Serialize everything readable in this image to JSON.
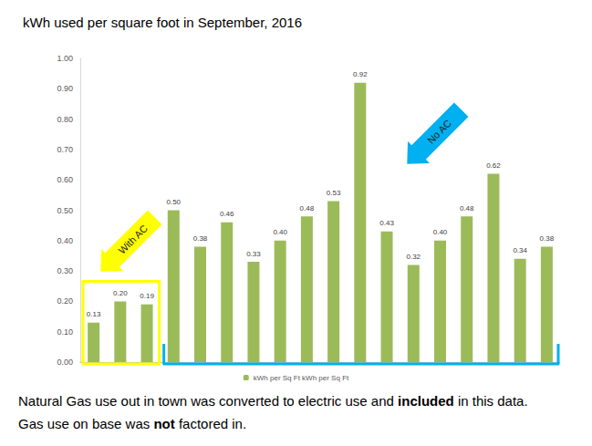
{
  "chart_data": {
    "type": "bar",
    "title": "kWh used per square foot in September, 2016",
    "categories": [
      null,
      null,
      null,
      null,
      null,
      null,
      null,
      null,
      null,
      null,
      null,
      null,
      null,
      null,
      null,
      null,
      null,
      null
    ],
    "series": [
      {
        "name": "kWh per Sq Ft kWh per Sq Ft",
        "color": "#9bbb59",
        "values": [
          0.13,
          0.2,
          0.19,
          0.5,
          0.38,
          0.46,
          0.33,
          0.4,
          0.48,
          0.53,
          0.92,
          0.43,
          0.32,
          0.4,
          0.48,
          0.62,
          0.34,
          0.38
        ],
        "value_labels": [
          "0.13",
          "0.20",
          "0.19",
          "0.50",
          "0.38",
          "0.46",
          "0.33",
          "0.40",
          "0.48",
          "0.53",
          "0.92",
          "0.43",
          "0.32",
          "0.40",
          "0.48",
          "0.62",
          "0.34",
          "0.38"
        ]
      }
    ],
    "ylim": [
      0,
      1
    ],
    "yticks": [
      {
        "value": 0,
        "label": "0.00"
      },
      {
        "value": 0.1,
        "label": "0.10"
      },
      {
        "value": 0.2,
        "label": "0.20"
      },
      {
        "value": 0.3,
        "label": "0.30"
      },
      {
        "value": 0.4,
        "label": "0.40"
      },
      {
        "value": 0.5,
        "label": "0.50"
      },
      {
        "value": 0.6,
        "label": "0.60"
      },
      {
        "value": 0.7,
        "label": "0.70"
      },
      {
        "value": 0.8,
        "label": "0.80"
      },
      {
        "value": 0.9,
        "label": "0.90"
      },
      {
        "value": 1,
        "label": "1.00"
      }
    ],
    "grid": false,
    "legend": "bottom",
    "data_labels": true,
    "annotations": [
      {
        "text": "With AC",
        "color": "#ffff00",
        "first": 0,
        "last": 2
      },
      {
        "text": "No AC",
        "color": "#00b0f0",
        "first": 3,
        "last": 17
      }
    ],
    "notes": [
      [
        {
          "text": "Natural Gas use out in town was converted to electric use and "
        },
        {
          "text": "included",
          "bold": true
        },
        {
          "text": " in this data."
        }
      ],
      [
        {
          "text": "Gas use on base was "
        },
        {
          "text": "not",
          "bold": true
        },
        {
          "text": " factored in."
        }
      ]
    ]
  }
}
